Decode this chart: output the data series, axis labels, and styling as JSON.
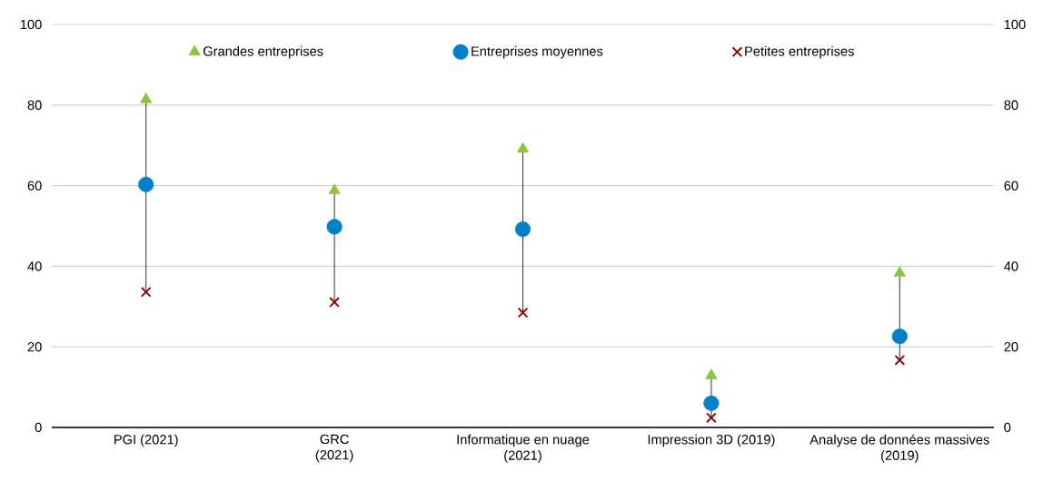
{
  "chart_data": {
    "type": "scatter",
    "categories": [
      "PGI (2021)",
      "GRC (2021)",
      "Informatique en nuage (2021)",
      "Impression 3D (2019)",
      "Analyse de données massives (2019)"
    ],
    "series": [
      {
        "name": "Grandes entreprises",
        "color": "#8cc63f",
        "marker": "triangle",
        "values": [
          81.4,
          58.8,
          69.1,
          12.9,
          38.3
        ]
      },
      {
        "name": "Entreprises moyennes",
        "color": "#0080c8",
        "marker": "circle",
        "values": [
          60.3,
          49.8,
          49.2,
          6.0,
          22.6
        ]
      },
      {
        "name": "Petites entreprises",
        "color": "#8b0000",
        "marker": "cross",
        "values": [
          33.6,
          31.1,
          28.5,
          2.4,
          16.7
        ]
      }
    ],
    "ylim": [
      0,
      100
    ],
    "yticks": [
      0,
      20,
      40,
      60,
      80,
      100
    ],
    "y2lim": [
      0,
      100
    ],
    "y2ticks": [
      0,
      20,
      40,
      60,
      80,
      100
    ],
    "grid": "y",
    "legend": "top"
  }
}
